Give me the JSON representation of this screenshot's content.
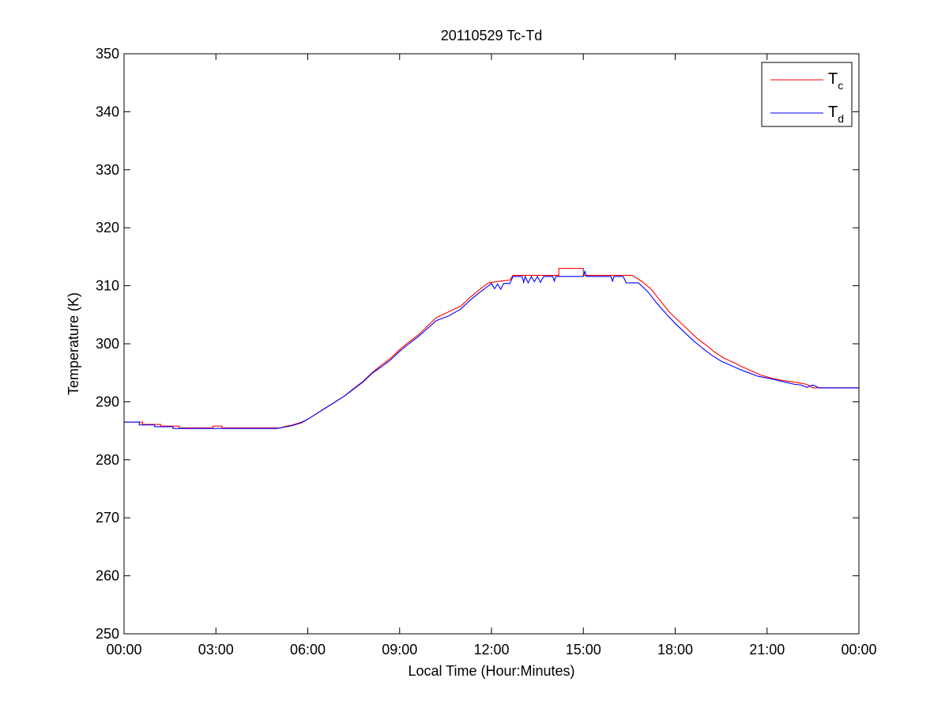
{
  "chart_data": {
    "type": "line",
    "title": "20110529 Tc-Td",
    "xlabel": "Local Time (Hour:Minutes)",
    "ylabel": "Temperature (K)",
    "xlim": [
      0,
      24
    ],
    "ylim": [
      250,
      350
    ],
    "x_ticks": [
      0,
      3,
      6,
      9,
      12,
      15,
      18,
      21,
      24
    ],
    "x_tick_labels": [
      "00:00",
      "03:00",
      "06:00",
      "09:00",
      "12:00",
      "15:00",
      "18:00",
      "21:00",
      "00:00"
    ],
    "y_ticks": [
      250,
      260,
      270,
      280,
      290,
      300,
      310,
      320,
      330,
      340,
      350
    ],
    "y_tick_labels": [
      "250",
      "260",
      "270",
      "280",
      "290",
      "300",
      "310",
      "320",
      "330",
      "340",
      "350"
    ],
    "grid": false,
    "legend_position": "top-right",
    "series": [
      {
        "name": "Tc",
        "legend_main": "T",
        "legend_sub": "c",
        "color": "#ff0000",
        "points": [
          [
            0.0,
            286.5
          ],
          [
            0.6,
            286.5
          ],
          [
            0.6,
            286.1
          ],
          [
            1.2,
            286.1
          ],
          [
            1.2,
            285.8
          ],
          [
            1.8,
            285.8
          ],
          [
            1.8,
            285.5
          ],
          [
            2.9,
            285.5
          ],
          [
            2.9,
            285.8
          ],
          [
            3.2,
            285.8
          ],
          [
            3.2,
            285.5
          ],
          [
            5.1,
            285.5
          ],
          [
            5.3,
            285.8
          ],
          [
            5.5,
            286.0
          ],
          [
            5.8,
            286.5
          ],
          [
            6.0,
            287.0
          ],
          [
            6.3,
            288.0
          ],
          [
            6.6,
            289.0
          ],
          [
            6.9,
            290.0
          ],
          [
            7.2,
            291.0
          ],
          [
            7.5,
            292.3
          ],
          [
            7.8,
            293.5
          ],
          [
            8.1,
            295.0
          ],
          [
            8.4,
            296.3
          ],
          [
            8.7,
            297.5
          ],
          [
            9.0,
            299.0
          ],
          [
            9.3,
            300.3
          ],
          [
            9.6,
            301.5
          ],
          [
            9.9,
            303.0
          ],
          [
            10.2,
            304.5
          ],
          [
            10.6,
            305.5
          ],
          [
            11.0,
            306.5
          ],
          [
            11.3,
            308.0
          ],
          [
            11.6,
            309.3
          ],
          [
            11.9,
            310.5
          ],
          [
            12.3,
            310.8
          ],
          [
            12.6,
            311.0
          ],
          [
            12.7,
            311.8
          ],
          [
            14.2,
            311.8
          ],
          [
            14.2,
            313.0
          ],
          [
            15.0,
            313.0
          ],
          [
            15.0,
            311.8
          ],
          [
            16.6,
            311.8
          ],
          [
            16.9,
            310.8
          ],
          [
            17.2,
            309.5
          ],
          [
            17.5,
            307.5
          ],
          [
            17.8,
            305.5
          ],
          [
            18.1,
            304.0
          ],
          [
            18.4,
            302.5
          ],
          [
            18.7,
            301.0
          ],
          [
            19.0,
            299.8
          ],
          [
            19.3,
            298.5
          ],
          [
            19.6,
            297.5
          ],
          [
            19.9,
            296.8
          ],
          [
            20.2,
            296.0
          ],
          [
            20.5,
            295.3
          ],
          [
            20.8,
            294.6
          ],
          [
            21.2,
            294.0
          ],
          [
            21.6,
            293.6
          ],
          [
            22.0,
            293.3
          ],
          [
            22.3,
            293.0
          ],
          [
            22.5,
            292.4
          ],
          [
            24.0,
            292.4
          ]
        ]
      },
      {
        "name": "Td",
        "legend_main": "T",
        "legend_sub": "d",
        "color": "#0000ff",
        "points": [
          [
            0.0,
            286.5
          ],
          [
            0.5,
            286.5
          ],
          [
            0.5,
            286.0
          ],
          [
            1.0,
            286.0
          ],
          [
            1.0,
            285.7
          ],
          [
            1.6,
            285.7
          ],
          [
            1.6,
            285.4
          ],
          [
            5.0,
            285.4
          ],
          [
            5.2,
            285.6
          ],
          [
            5.5,
            285.9
          ],
          [
            5.8,
            286.4
          ],
          [
            6.0,
            287.0
          ],
          [
            6.3,
            288.0
          ],
          [
            6.6,
            289.0
          ],
          [
            6.9,
            290.0
          ],
          [
            7.2,
            291.0
          ],
          [
            7.5,
            292.2
          ],
          [
            7.8,
            293.4
          ],
          [
            8.1,
            294.9
          ],
          [
            8.4,
            296.0
          ],
          [
            8.7,
            297.2
          ],
          [
            9.0,
            298.7
          ],
          [
            9.3,
            300.0
          ],
          [
            9.6,
            301.2
          ],
          [
            9.9,
            302.6
          ],
          [
            10.2,
            304.0
          ],
          [
            10.6,
            304.8
          ],
          [
            11.0,
            306.0
          ],
          [
            11.3,
            307.5
          ],
          [
            11.6,
            308.8
          ],
          [
            11.9,
            310.0
          ],
          [
            12.0,
            310.4
          ],
          [
            12.1,
            309.5
          ],
          [
            12.2,
            310.3
          ],
          [
            12.3,
            309.4
          ],
          [
            12.4,
            310.4
          ],
          [
            12.6,
            310.4
          ],
          [
            12.7,
            311.6
          ],
          [
            13.0,
            311.6
          ],
          [
            13.05,
            310.6
          ],
          [
            13.1,
            311.6
          ],
          [
            13.2,
            310.5
          ],
          [
            13.3,
            311.6
          ],
          [
            13.4,
            310.7
          ],
          [
            13.5,
            311.6
          ],
          [
            13.6,
            310.6
          ],
          [
            13.7,
            311.6
          ],
          [
            14.0,
            311.6
          ],
          [
            14.05,
            310.8
          ],
          [
            14.1,
            311.6
          ],
          [
            15.0,
            311.6
          ],
          [
            15.05,
            312.5
          ],
          [
            15.1,
            311.6
          ],
          [
            15.9,
            311.6
          ],
          [
            15.95,
            310.8
          ],
          [
            16.0,
            311.6
          ],
          [
            16.3,
            311.6
          ],
          [
            16.4,
            310.5
          ],
          [
            16.8,
            310.5
          ],
          [
            17.1,
            309.0
          ],
          [
            17.4,
            307.0
          ],
          [
            17.7,
            305.2
          ],
          [
            18.0,
            303.5
          ],
          [
            18.3,
            302.0
          ],
          [
            18.6,
            300.5
          ],
          [
            18.9,
            299.2
          ],
          [
            19.2,
            298.0
          ],
          [
            19.5,
            297.0
          ],
          [
            19.8,
            296.3
          ],
          [
            20.1,
            295.6
          ],
          [
            20.4,
            295.0
          ],
          [
            20.7,
            294.4
          ],
          [
            21.1,
            294.0
          ],
          [
            21.5,
            293.5
          ],
          [
            21.9,
            293.0
          ],
          [
            22.1,
            292.9
          ],
          [
            22.3,
            292.5
          ],
          [
            22.5,
            292.9
          ],
          [
            22.7,
            292.4
          ],
          [
            24.0,
            292.4
          ]
        ]
      }
    ]
  }
}
